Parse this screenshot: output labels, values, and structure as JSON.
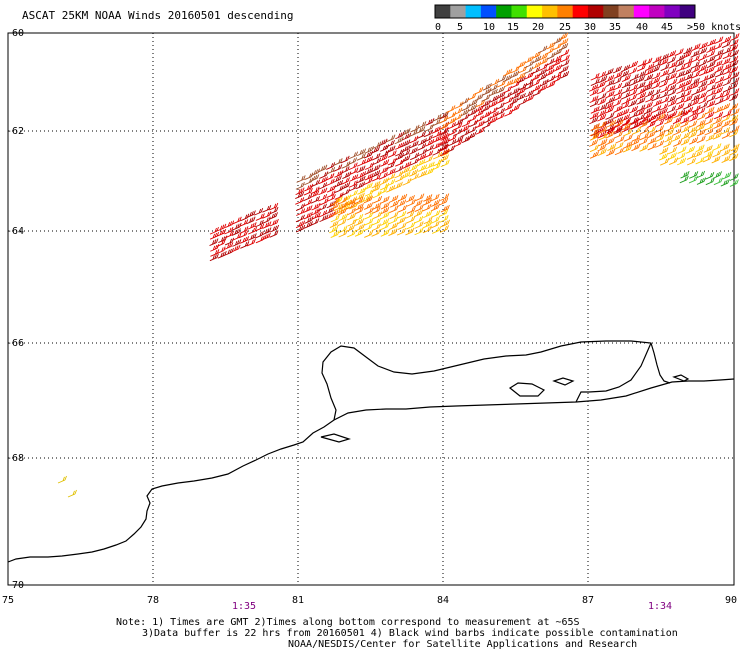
{
  "title": "ASCAT 25KM NOAA Winds 20160501 descending",
  "colorbar": {
    "colors": [
      "#404040",
      "#a0a0a0",
      "#00bfff",
      "#0050ff",
      "#00a000",
      "#40e000",
      "#ffff00",
      "#ffc000",
      "#ff8000",
      "#ff0000",
      "#b00000",
      "#804020",
      "#c08060",
      "#ff00ff",
      "#c000c0",
      "#8000c0",
      "#400080"
    ],
    "labels": [
      "0",
      "5",
      "10",
      "15",
      "20",
      "25",
      "30",
      "35",
      "40",
      "45",
      ">50 knots"
    ]
  },
  "axes": {
    "x_ticks": [
      "75",
      "78",
      "81",
      "84",
      "87",
      "90"
    ],
    "y_ticks": [
      "-60",
      "-62",
      "-64",
      "-66",
      "-68",
      "-70"
    ]
  },
  "time_labels": [
    "1:35",
    "1:34"
  ],
  "notes": [
    "Note: 1) Times are GMT 2)Times along bottom correspond to measurement at ~65S",
    "3)Data buffer is 22 hrs from 20160501 4) Black wind barbs indicate possible contamination",
    "NOAA/NESDIS/Center for Satellite Applications and Research"
  ]
}
